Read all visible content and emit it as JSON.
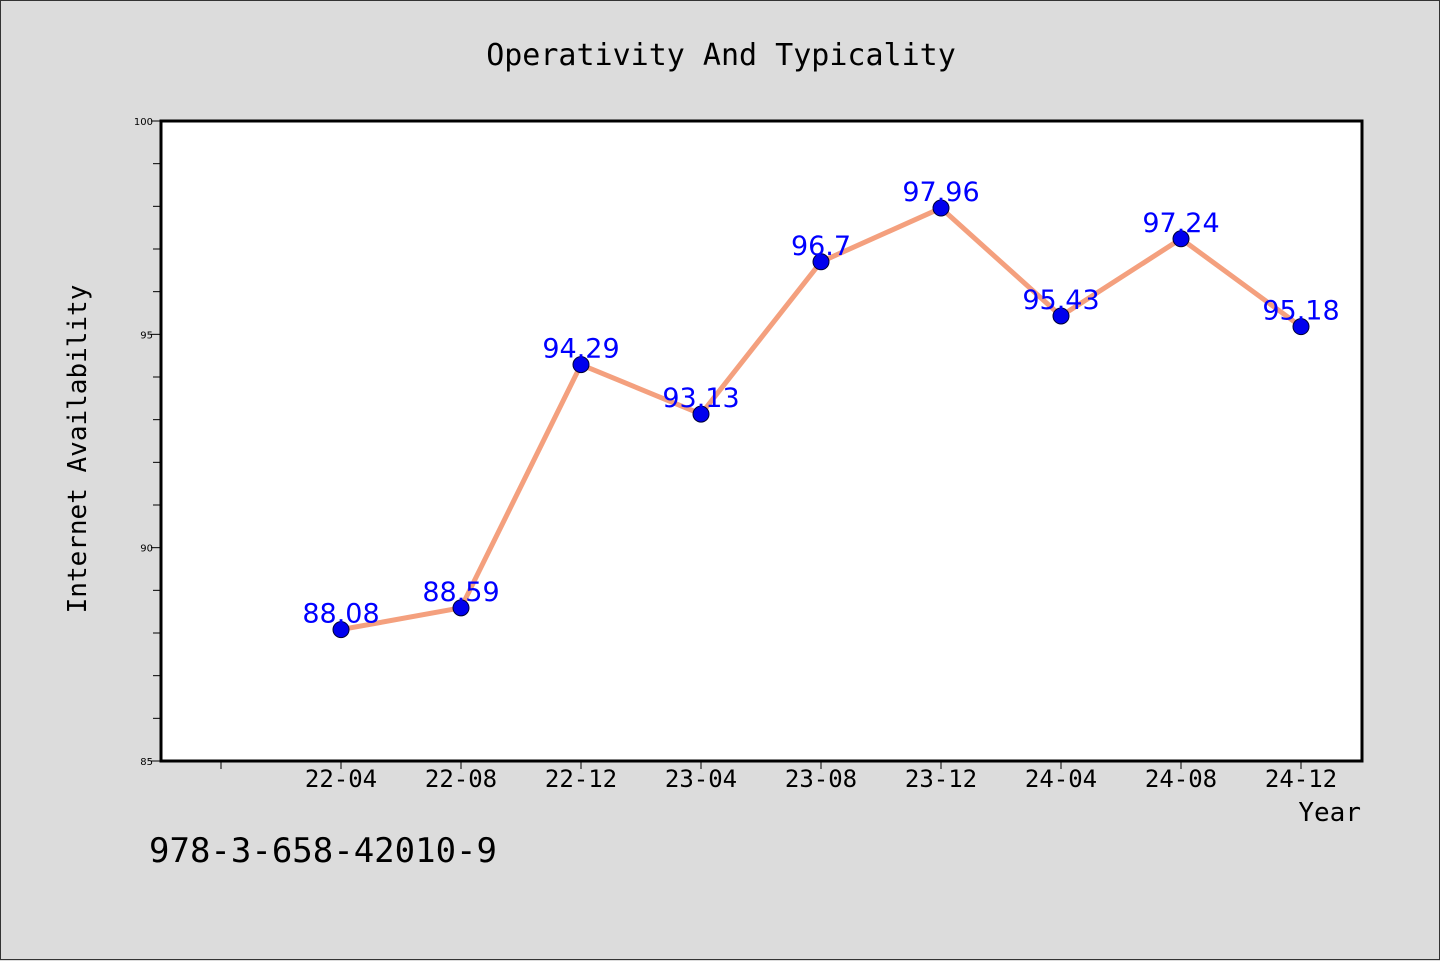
{
  "chart_data": {
    "type": "line",
    "title": "Operativity And Typicality",
    "xlabel": "Year",
    "ylabel": "Internet Availability",
    "categories": [
      "22-04",
      "22-08",
      "22-12",
      "23-04",
      "23-08",
      "23-12",
      "24-04",
      "24-08",
      "24-12"
    ],
    "series": [
      {
        "values": [
          88.08,
          88.59,
          94.29,
          93.13,
          96.7,
          97.96,
          95.43,
          97.24,
          95.18
        ],
        "labels": [
          "88.08",
          "88.59",
          "94.29",
          "93.13",
          "96.7",
          "97.96",
          "95.43",
          "97.24",
          "95.18"
        ]
      }
    ],
    "ylim": [
      85,
      100
    ],
    "yticks": [
      "85",
      "90",
      "95",
      "100"
    ],
    "grid": false,
    "colors": {
      "line": "#f4a07e",
      "marker": "#0000ee",
      "label": "#0000ff"
    }
  },
  "annotation": "978-3-658-42010-9"
}
